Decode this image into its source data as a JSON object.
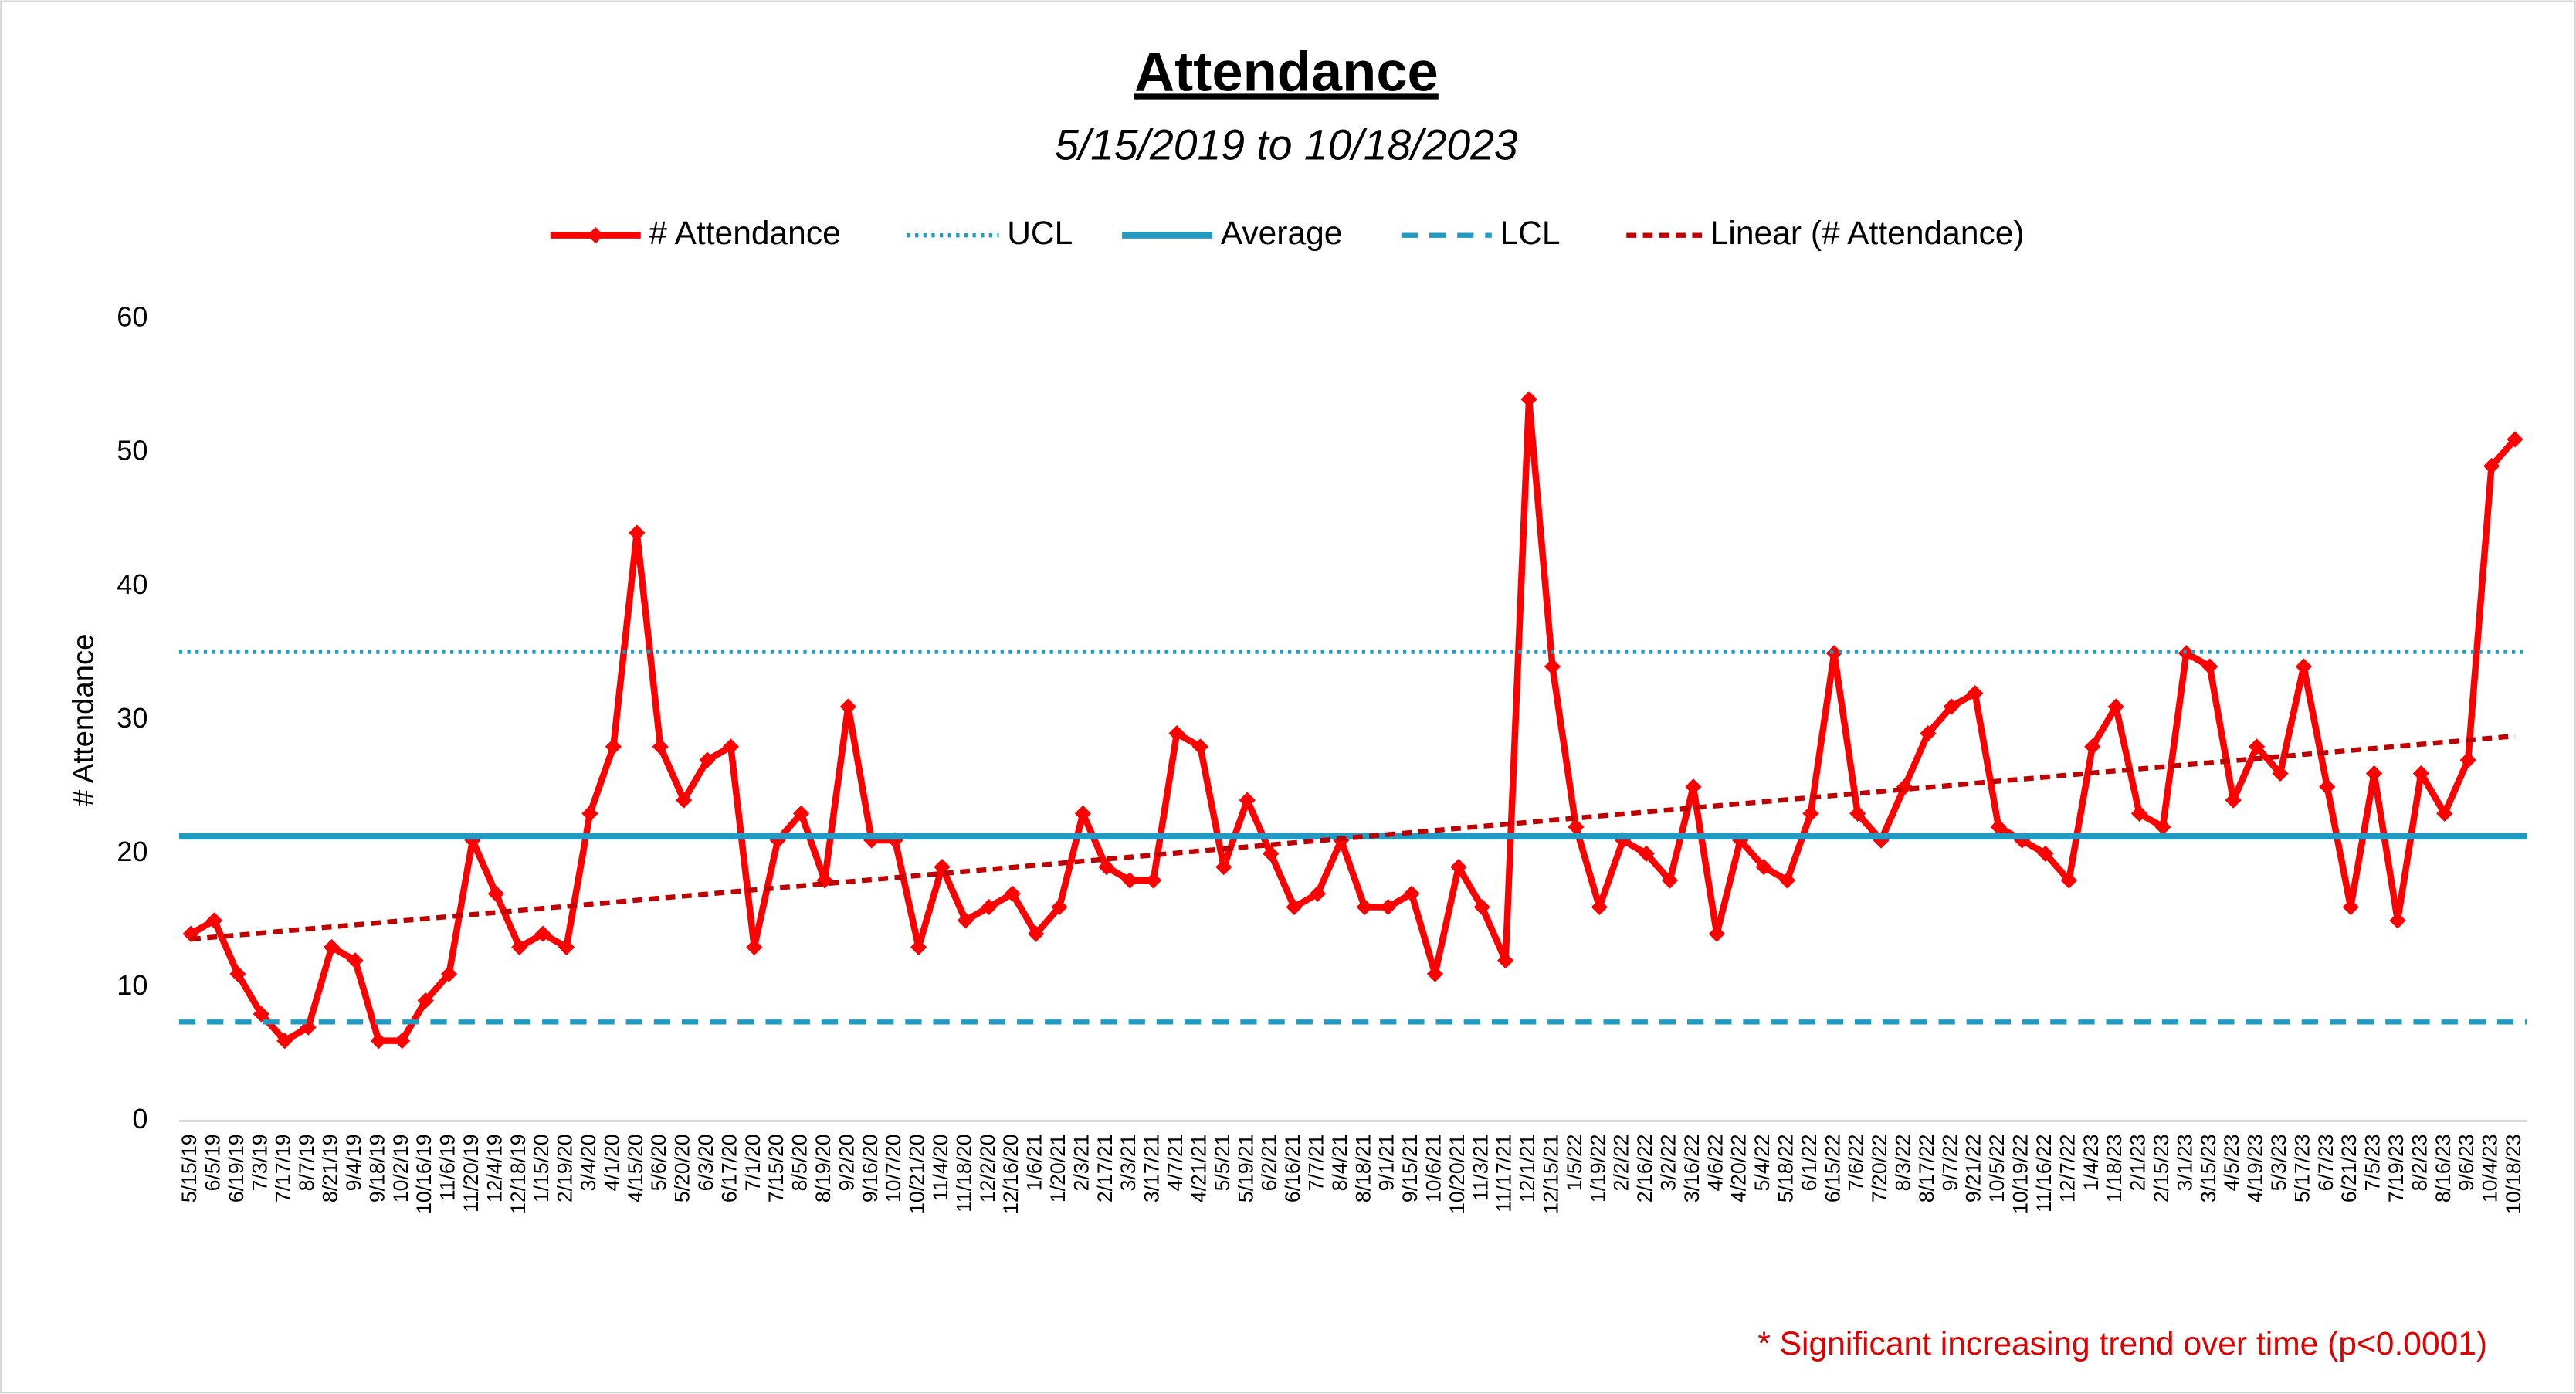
{
  "chart_data": {
    "type": "line",
    "title": "Attendance",
    "subtitle": "5/15/2019 to 10/18/2023",
    "y_axis_label": "# Attendance",
    "annotation": "* Significant increasing trend over time (p<0.0001)",
    "categories": [
      "5/15/19",
      "6/5/19",
      "6/19/19",
      "7/3/19",
      "7/17/19",
      "8/7/19",
      "8/21/19",
      "9/4/19",
      "9/18/19",
      "10/2/19",
      "10/16/19",
      "11/6/19",
      "11/20/19",
      "12/4/19",
      "12/18/19",
      "1/15/20",
      "2/19/20",
      "3/4/20",
      "4/1/20",
      "4/15/20",
      "5/6/20",
      "5/20/20",
      "6/3/20",
      "6/17/20",
      "7/1/20",
      "7/15/20",
      "8/5/20",
      "8/19/20",
      "9/2/20",
      "9/16/20",
      "10/7/20",
      "10/21/20",
      "11/4/20",
      "11/18/20",
      "12/2/20",
      "12/16/20",
      "1/6/21",
      "1/20/21",
      "2/3/21",
      "2/17/21",
      "3/3/21",
      "3/17/21",
      "4/7/21",
      "4/21/21",
      "5/5/21",
      "5/19/21",
      "6/2/21",
      "6/16/21",
      "7/7/21",
      "8/4/21",
      "8/18/21",
      "9/1/21",
      "9/15/21",
      "10/6/21",
      "10/20/21",
      "11/3/21",
      "11/17/21",
      "12/1/21",
      "12/15/21",
      "1/5/22",
      "1/19/22",
      "2/2/22",
      "2/16/22",
      "3/2/22",
      "3/16/22",
      "4/6/22",
      "4/20/22",
      "5/4/22",
      "5/18/22",
      "6/1/22",
      "6/15/22",
      "7/6/22",
      "7/20/22",
      "8/3/22",
      "8/17/22",
      "9/7/22",
      "9/21/22",
      "10/5/22",
      "10/19/22",
      "11/16/22",
      "12/7/22",
      "1/4/23",
      "1/18/23",
      "2/1/23",
      "2/15/23",
      "3/1/23",
      "3/15/23",
      "4/5/23",
      "4/19/23",
      "5/3/23",
      "5/17/23",
      "6/7/23",
      "6/21/23",
      "7/5/23",
      "7/19/23",
      "8/2/23",
      "8/16/23",
      "9/6/23",
      "10/4/23",
      "10/18/23"
    ],
    "series": [
      {
        "name": "# Attendance",
        "color": "#ff0000",
        "line_style": "solid",
        "marker": "diamond",
        "values": [
          14,
          15,
          11,
          8,
          6,
          7,
          13,
          12,
          6,
          6,
          9,
          11,
          21,
          17,
          13,
          14,
          13,
          23,
          28,
          44,
          28,
          24,
          27,
          28,
          13,
          21,
          23,
          18,
          31,
          21,
          21,
          13,
          19,
          15,
          16,
          17,
          14,
          16,
          23,
          19,
          18,
          18,
          29,
          28,
          19,
          24,
          20,
          16,
          17,
          21,
          16,
          16,
          17,
          11,
          19,
          16,
          12,
          54,
          34,
          22,
          16,
          21,
          20,
          18,
          25,
          14,
          21,
          19,
          18,
          23,
          35,
          23,
          21,
          25,
          29,
          31,
          32,
          22,
          21,
          20,
          18,
          28,
          31,
          23,
          22,
          35,
          34,
          24,
          28,
          26,
          34,
          25,
          16,
          26,
          15,
          26,
          23,
          27,
          49,
          51
        ]
      },
      {
        "name": "UCL",
        "color": "#1f9bc4",
        "line_style": "dotted",
        "value": 35.1
      },
      {
        "name": "Average",
        "color": "#1f9bc4",
        "line_style": "solid",
        "value": 21.3
      },
      {
        "name": "LCL",
        "color": "#1f9bc4",
        "line_style": "dashed",
        "value": 7.4
      },
      {
        "name": "Linear (# Attendance)",
        "color": "#c00000",
        "line_style": "short-dashed",
        "start": 13.6,
        "end": 28.8
      }
    ],
    "ylim": [
      0,
      60
    ],
    "yticks": [
      0,
      10,
      20,
      30,
      40,
      50,
      60
    ],
    "grid": false,
    "legend": "top"
  }
}
